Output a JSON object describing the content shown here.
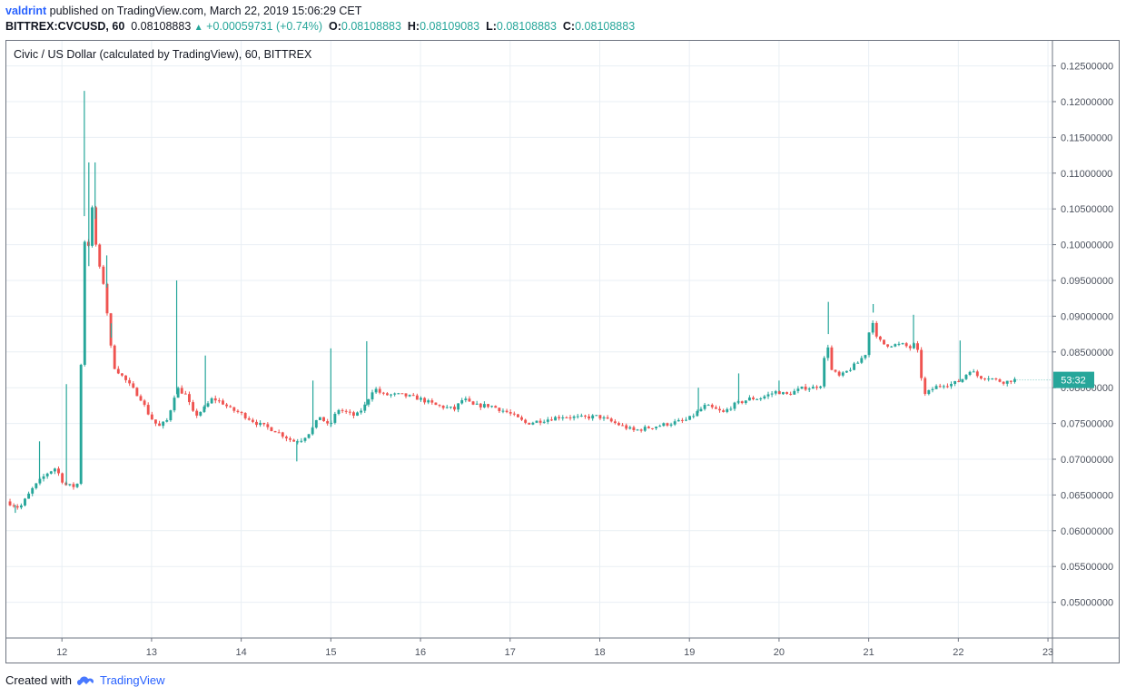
{
  "header": {
    "user": "valdrint",
    "published_text": "published on TradingView.com, March 22, 2019 15:06:29 CET",
    "symbol": "BITTREX:CVCUSD, 60",
    "last": "0.08108883",
    "change": "+0.00059731 (+0.74%)",
    "open_label": "O:",
    "open": "0.08108883",
    "high_label": "H:",
    "high": "0.08109083",
    "low_label": "L:",
    "low": "0.08108883",
    "close_label": "C:",
    "close": "0.08108883"
  },
  "chart_title": "Civic / US Dollar (calculated by TradingView), 60, BITTREX",
  "price_tag": "53:32",
  "footer": {
    "created_with": "Created with",
    "brand": "TradingView"
  },
  "colors": {
    "up": "#26a69a",
    "down": "#ef5350",
    "grid": "#e9eff4",
    "axis_text": "#4c525e",
    "link": "#2962ff"
  },
  "chart_data": {
    "type": "candlestick",
    "title": "Civic / US Dollar (calculated by TradingView), 60, BITTREX",
    "x_ticks": [
      "12",
      "13",
      "14",
      "15",
      "16",
      "17",
      "18",
      "19",
      "20",
      "21",
      "22",
      "23"
    ],
    "y_ticks": [
      "0.12500000",
      "0.12000000",
      "0.11500000",
      "0.11000000",
      "0.10500000",
      "0.10000000",
      "0.09500000",
      "0.09000000",
      "0.08500000",
      "0.08000000",
      "0.07500000",
      "0.07000000",
      "0.06500000",
      "0.06000000",
      "0.05500000",
      "0.05000000"
    ],
    "ylim": [
      0.045,
      0.1285
    ],
    "xlim": [
      11.38,
      23.05
    ],
    "grid": true,
    "last_price": 0.08108883,
    "series": [
      {
        "points": [
          [
            11.4,
            0.0641
          ],
          [
            11.55,
            0.0632
          ],
          [
            11.7,
            0.066
          ],
          [
            11.85,
            0.068
          ],
          [
            11.95,
            0.0688
          ],
          [
            12.05,
            0.0664
          ],
          [
            12.15,
            0.0662
          ],
          [
            12.22,
            0.0668
          ],
          [
            12.25,
            0.104
          ],
          [
            12.3,
            0.097
          ],
          [
            12.35,
            0.106
          ],
          [
            12.4,
            0.1
          ],
          [
            12.45,
            0.096
          ],
          [
            12.5,
            0.094
          ],
          [
            12.55,
            0.087
          ],
          [
            12.6,
            0.083
          ],
          [
            12.7,
            0.0815
          ],
          [
            12.8,
            0.08
          ],
          [
            12.9,
            0.0785
          ],
          [
            13.0,
            0.076
          ],
          [
            13.1,
            0.0745
          ],
          [
            13.2,
            0.0755
          ],
          [
            13.3,
            0.08
          ],
          [
            13.4,
            0.079
          ],
          [
            13.5,
            0.076
          ],
          [
            13.6,
            0.077
          ],
          [
            13.7,
            0.0785
          ],
          [
            13.8,
            0.078
          ],
          [
            13.9,
            0.077
          ],
          [
            14.0,
            0.0765
          ],
          [
            14.2,
            0.075
          ],
          [
            14.4,
            0.074
          ],
          [
            14.6,
            0.0725
          ],
          [
            14.7,
            0.0728
          ],
          [
            14.8,
            0.074
          ],
          [
            14.9,
            0.076
          ],
          [
            15.0,
            0.0745
          ],
          [
            15.1,
            0.077
          ],
          [
            15.2,
            0.0765
          ],
          [
            15.3,
            0.076
          ],
          [
            15.4,
            0.0775
          ],
          [
            15.5,
            0.08
          ],
          [
            15.6,
            0.079
          ],
          [
            15.8,
            0.079
          ],
          [
            16.0,
            0.0785
          ],
          [
            16.2,
            0.0775
          ],
          [
            16.4,
            0.077
          ],
          [
            16.5,
            0.0785
          ],
          [
            16.6,
            0.0775
          ],
          [
            16.8,
            0.0775
          ],
          [
            17.0,
            0.0765
          ],
          [
            17.2,
            0.075
          ],
          [
            17.4,
            0.0755
          ],
          [
            17.6,
            0.076
          ],
          [
            17.8,
            0.0758
          ],
          [
            18.0,
            0.076
          ],
          [
            18.2,
            0.075
          ],
          [
            18.4,
            0.074
          ],
          [
            18.6,
            0.0745
          ],
          [
            18.8,
            0.075
          ],
          [
            19.0,
            0.0755
          ],
          [
            19.1,
            0.0765
          ],
          [
            19.2,
            0.0775
          ],
          [
            19.3,
            0.077
          ],
          [
            19.4,
            0.0765
          ],
          [
            19.5,
            0.0775
          ],
          [
            19.6,
            0.078
          ],
          [
            19.7,
            0.0785
          ],
          [
            19.8,
            0.0785
          ],
          [
            19.9,
            0.079
          ],
          [
            20.0,
            0.0795
          ],
          [
            20.1,
            0.079
          ],
          [
            20.2,
            0.0795
          ],
          [
            20.3,
            0.08
          ],
          [
            20.4,
            0.08
          ],
          [
            20.5,
            0.0805
          ],
          [
            20.55,
            0.0875
          ],
          [
            20.6,
            0.0825
          ],
          [
            20.7,
            0.0815
          ],
          [
            20.8,
            0.0825
          ],
          [
            20.9,
            0.0835
          ],
          [
            21.0,
            0.085
          ],
          [
            21.05,
            0.0905
          ],
          [
            21.1,
            0.087
          ],
          [
            21.2,
            0.086
          ],
          [
            21.3,
            0.086
          ],
          [
            21.4,
            0.086
          ],
          [
            21.5,
            0.0855
          ],
          [
            21.55,
            0.0865
          ],
          [
            21.6,
            0.082
          ],
          [
            21.65,
            0.079
          ],
          [
            21.75,
            0.08
          ],
          [
            21.85,
            0.0805
          ],
          [
            21.95,
            0.0805
          ],
          [
            22.05,
            0.081
          ],
          [
            22.15,
            0.0825
          ],
          [
            22.25,
            0.0815
          ],
          [
            22.35,
            0.0815
          ],
          [
            22.45,
            0.081
          ],
          [
            22.55,
            0.0808
          ],
          [
            22.62,
            0.0811
          ]
        ],
        "wicks": [
          [
            11.48,
            0.0625
          ],
          [
            11.75,
            0.0725
          ],
          [
            12.05,
            0.0805
          ],
          [
            12.25,
            0.1215
          ],
          [
            12.3,
            0.1115
          ],
          [
            12.37,
            0.1115
          ],
          [
            12.5,
            0.0985
          ],
          [
            12.55,
            0.089
          ],
          [
            13.28,
            0.095
          ],
          [
            13.6,
            0.0845
          ],
          [
            14.62,
            0.0697
          ],
          [
            14.8,
            0.081
          ],
          [
            15.0,
            0.0855
          ],
          [
            15.4,
            0.0865
          ],
          [
            19.1,
            0.08
          ],
          [
            19.55,
            0.082
          ],
          [
            20.0,
            0.081
          ],
          [
            20.55,
            0.092
          ],
          [
            21.05,
            0.0917
          ],
          [
            21.5,
            0.0902
          ],
          [
            22.02,
            0.0866
          ]
        ]
      }
    ]
  }
}
